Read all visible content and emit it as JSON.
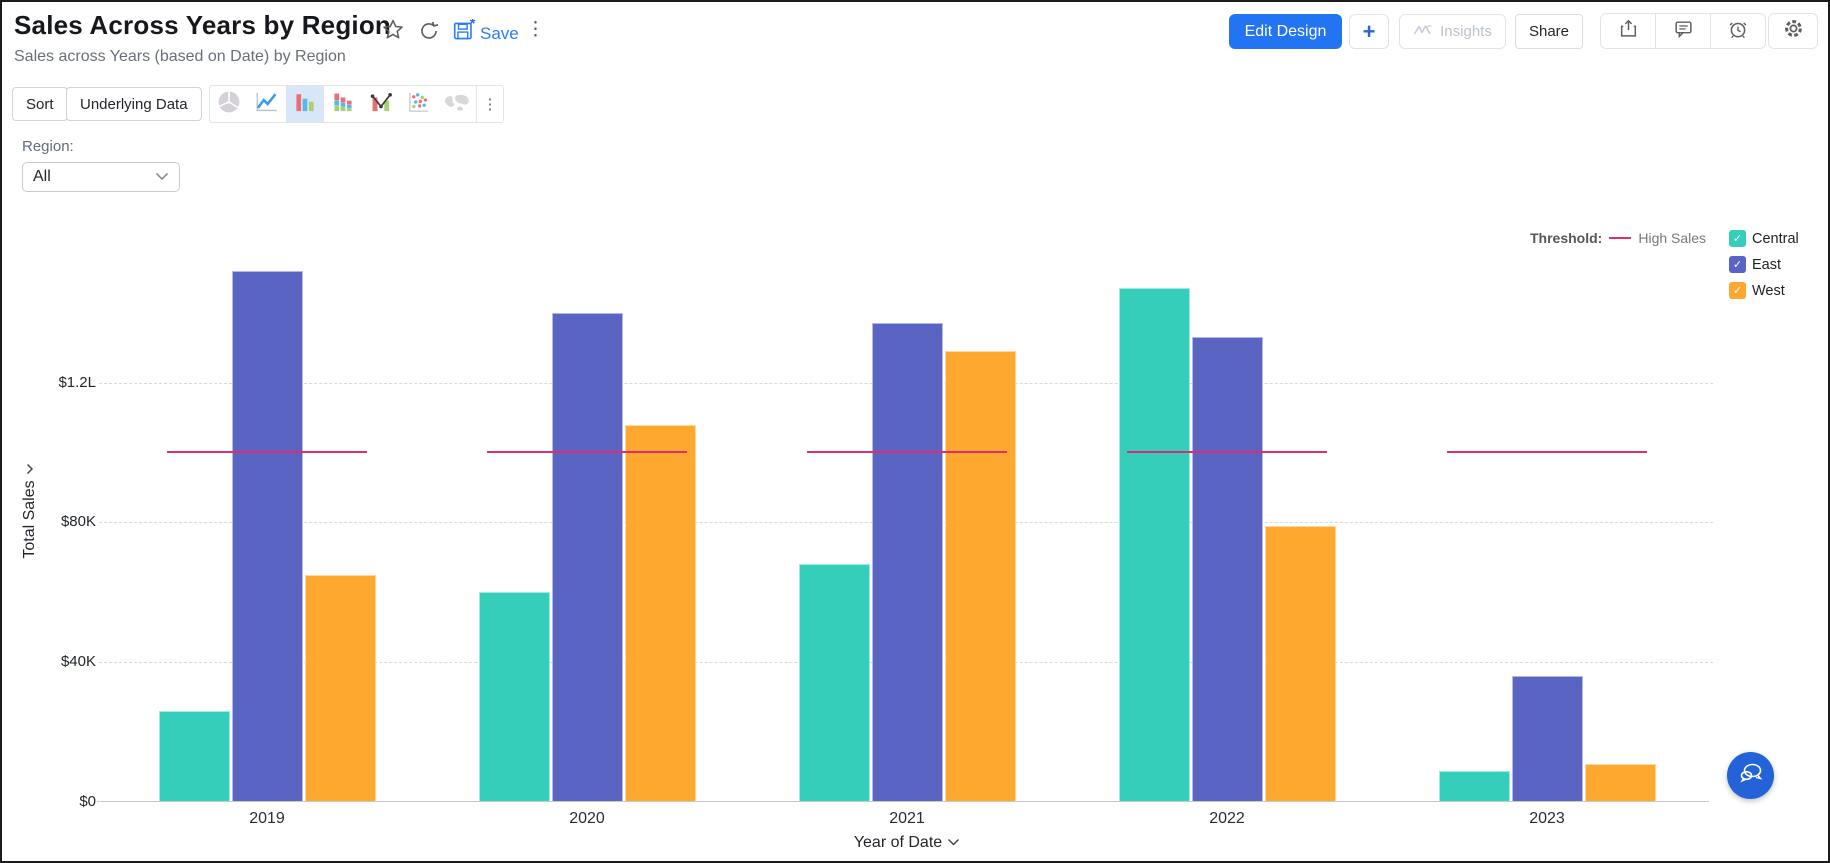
{
  "header": {
    "title": "Sales Across Years by Region",
    "subtitle": "Sales across Years (based on Date) by Region",
    "save_label": "Save",
    "edit_design_label": "Edit Design",
    "insights_label": "Insights",
    "share_label": "Share"
  },
  "toolbar": {
    "sort_label": "Sort",
    "underlying_data_label": "Underlying Data",
    "chart_types": [
      "pie",
      "line",
      "bar",
      "stacked-bar",
      "bar-line",
      "scatter",
      "map"
    ],
    "selected_chart_type": "bar"
  },
  "filter": {
    "label": "Region:",
    "value": "All"
  },
  "icons": {
    "kebab": "⋮",
    "plus": "+",
    "check": "✓"
  },
  "chart_data": {
    "type": "bar",
    "categories": [
      "2019",
      "2020",
      "2021",
      "2022",
      "2023"
    ],
    "series": [
      {
        "name": "Central",
        "color": "#34CEBB",
        "values": [
          26000,
          60000,
          68000,
          147000,
          9000
        ]
      },
      {
        "name": "East",
        "color": "#5A64C3",
        "values": [
          152000,
          140000,
          137000,
          133000,
          36000
        ]
      },
      {
        "name": "West",
        "color": "#FFA830",
        "values": [
          65000,
          108000,
          129000,
          79000,
          11000
        ]
      }
    ],
    "threshold": {
      "legend_label": "Threshold:",
      "label": "High Sales",
      "value": 100000,
      "color": "#DB2E72"
    },
    "xlabel": "Year of Date",
    "ylabel": "Total Sales",
    "yticks": [
      {
        "value": 0,
        "label": "$0"
      },
      {
        "value": 40000,
        "label": "$40K"
      },
      {
        "value": 80000,
        "label": "$80K"
      },
      {
        "value": 120000,
        "label": "$1.2L"
      }
    ],
    "ylim": [
      0,
      176000
    ],
    "grid": "dashed-horizontal",
    "legend_position": "top-right"
  }
}
